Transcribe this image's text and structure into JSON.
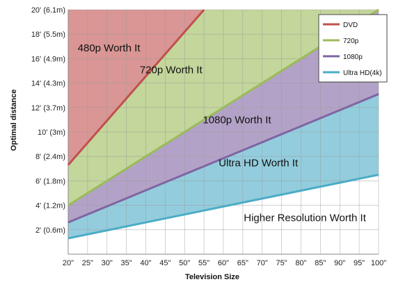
{
  "chart_data": {
    "type": "area",
    "xlabel": "Television Size",
    "ylabel": "Optimal distance",
    "xlim": [
      20,
      100
    ],
    "ylim": [
      0,
      20
    ],
    "x_ticks": [
      20,
      25,
      30,
      35,
      40,
      45,
      50,
      55,
      60,
      65,
      70,
      75,
      80,
      85,
      90,
      95,
      100
    ],
    "x_tick_labels": [
      "20\"",
      "25\"",
      "30\"",
      "35\"",
      "40\"",
      "45\"",
      "50\"",
      "55\"",
      "60\"",
      "65\"",
      "70\"",
      "75\"",
      "80\"",
      "85\"",
      "90\"",
      "95\"",
      "100\""
    ],
    "y_ticks": [
      2,
      4,
      6,
      8,
      10,
      12,
      14,
      16,
      18,
      20
    ],
    "y_tick_labels": [
      "2' (0.6m)",
      "4' (1.2m)",
      "6' (1.8m)",
      "8' (2.4m)",
      "10' (3m)",
      "12' (3.7m)",
      "14' (4.3m)",
      "16' (4.9m)",
      "18' (5.5m)",
      "20' (6.1m)"
    ],
    "grid": true,
    "legend_position": "top-right",
    "series": [
      {
        "name": "DVD",
        "color": "#c0504d",
        "fill": "#d99694",
        "points": [
          [
            20,
            7.3
          ],
          [
            55,
            20
          ]
        ]
      },
      {
        "name": "720p",
        "color": "#9bbb59",
        "fill": "#c3d69b",
        "points": [
          [
            20,
            4.0
          ],
          [
            100,
            20
          ]
        ]
      },
      {
        "name": "1080p",
        "color": "#8064a2",
        "fill": "#b3a2c7",
        "points": [
          [
            20,
            2.6
          ],
          [
            100,
            13.1
          ]
        ]
      },
      {
        "name": "Ultra HD(4k)",
        "color": "#4bacc6",
        "fill": "#93cddd",
        "points": [
          [
            20,
            1.3
          ],
          [
            100,
            6.5
          ]
        ]
      }
    ],
    "region_labels": [
      {
        "text": "480p Worth It",
        "x": 30.5,
        "y": 16.6
      },
      {
        "text": "720p Worth It",
        "x": 46.5,
        "y": 14.8
      },
      {
        "text": "1080p Worth It",
        "x": 63.5,
        "y": 10.7
      },
      {
        "text": "Ultra HD Worth It",
        "x": 69,
        "y": 7.2
      },
      {
        "text": "Higher Resolution Worth It",
        "x": 81,
        "y": 2.7
      }
    ]
  }
}
